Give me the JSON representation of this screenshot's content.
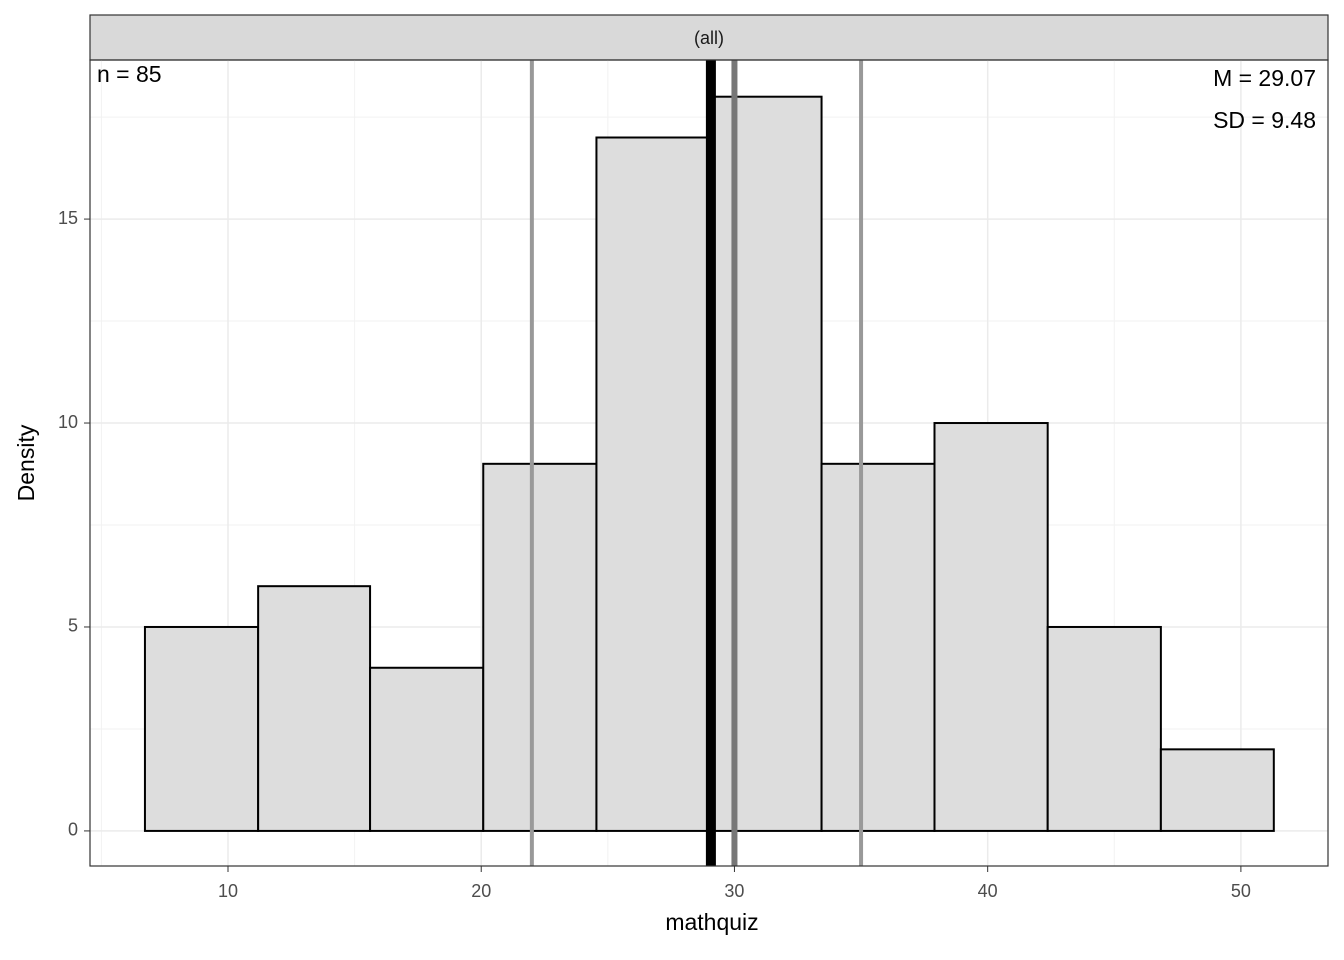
{
  "chart_data": {
    "type": "histogram",
    "strip_label": "(all)",
    "x_label": "mathquiz",
    "y_label": "Density",
    "bins": [
      6.72,
      11.19,
      15.61,
      20.08,
      24.55,
      29.01,
      33.44,
      37.9,
      42.37,
      46.84,
      51.3
    ],
    "counts": [
      5,
      6,
      4,
      9,
      17,
      18,
      9,
      10,
      5,
      2
    ],
    "color": "#dddddd",
    "edge_color": "#000000",
    "mean_line": {
      "value": 29.07,
      "color": "#000000"
    },
    "median_line": {
      "value": 30,
      "color": "#777777"
    },
    "quartile_lines": {
      "values": [
        22,
        35
      ],
      "color": "#999999"
    },
    "annotations": {
      "n": "n = 85",
      "mean": "M = 29.07",
      "sd": "SD = 9.48"
    },
    "xlim": [
      4.55,
      53.44
    ],
    "ylim": [
      -0.86,
      18.9
    ],
    "xticks": [
      10,
      20,
      30,
      40,
      50
    ],
    "yticks": [
      0,
      5,
      10,
      15
    ],
    "x_minor_ticks": [
      5,
      15,
      25,
      35,
      45
    ],
    "y_minor_ticks": [
      2.5,
      7.5,
      12.5,
      17.5
    ],
    "grid": true
  }
}
